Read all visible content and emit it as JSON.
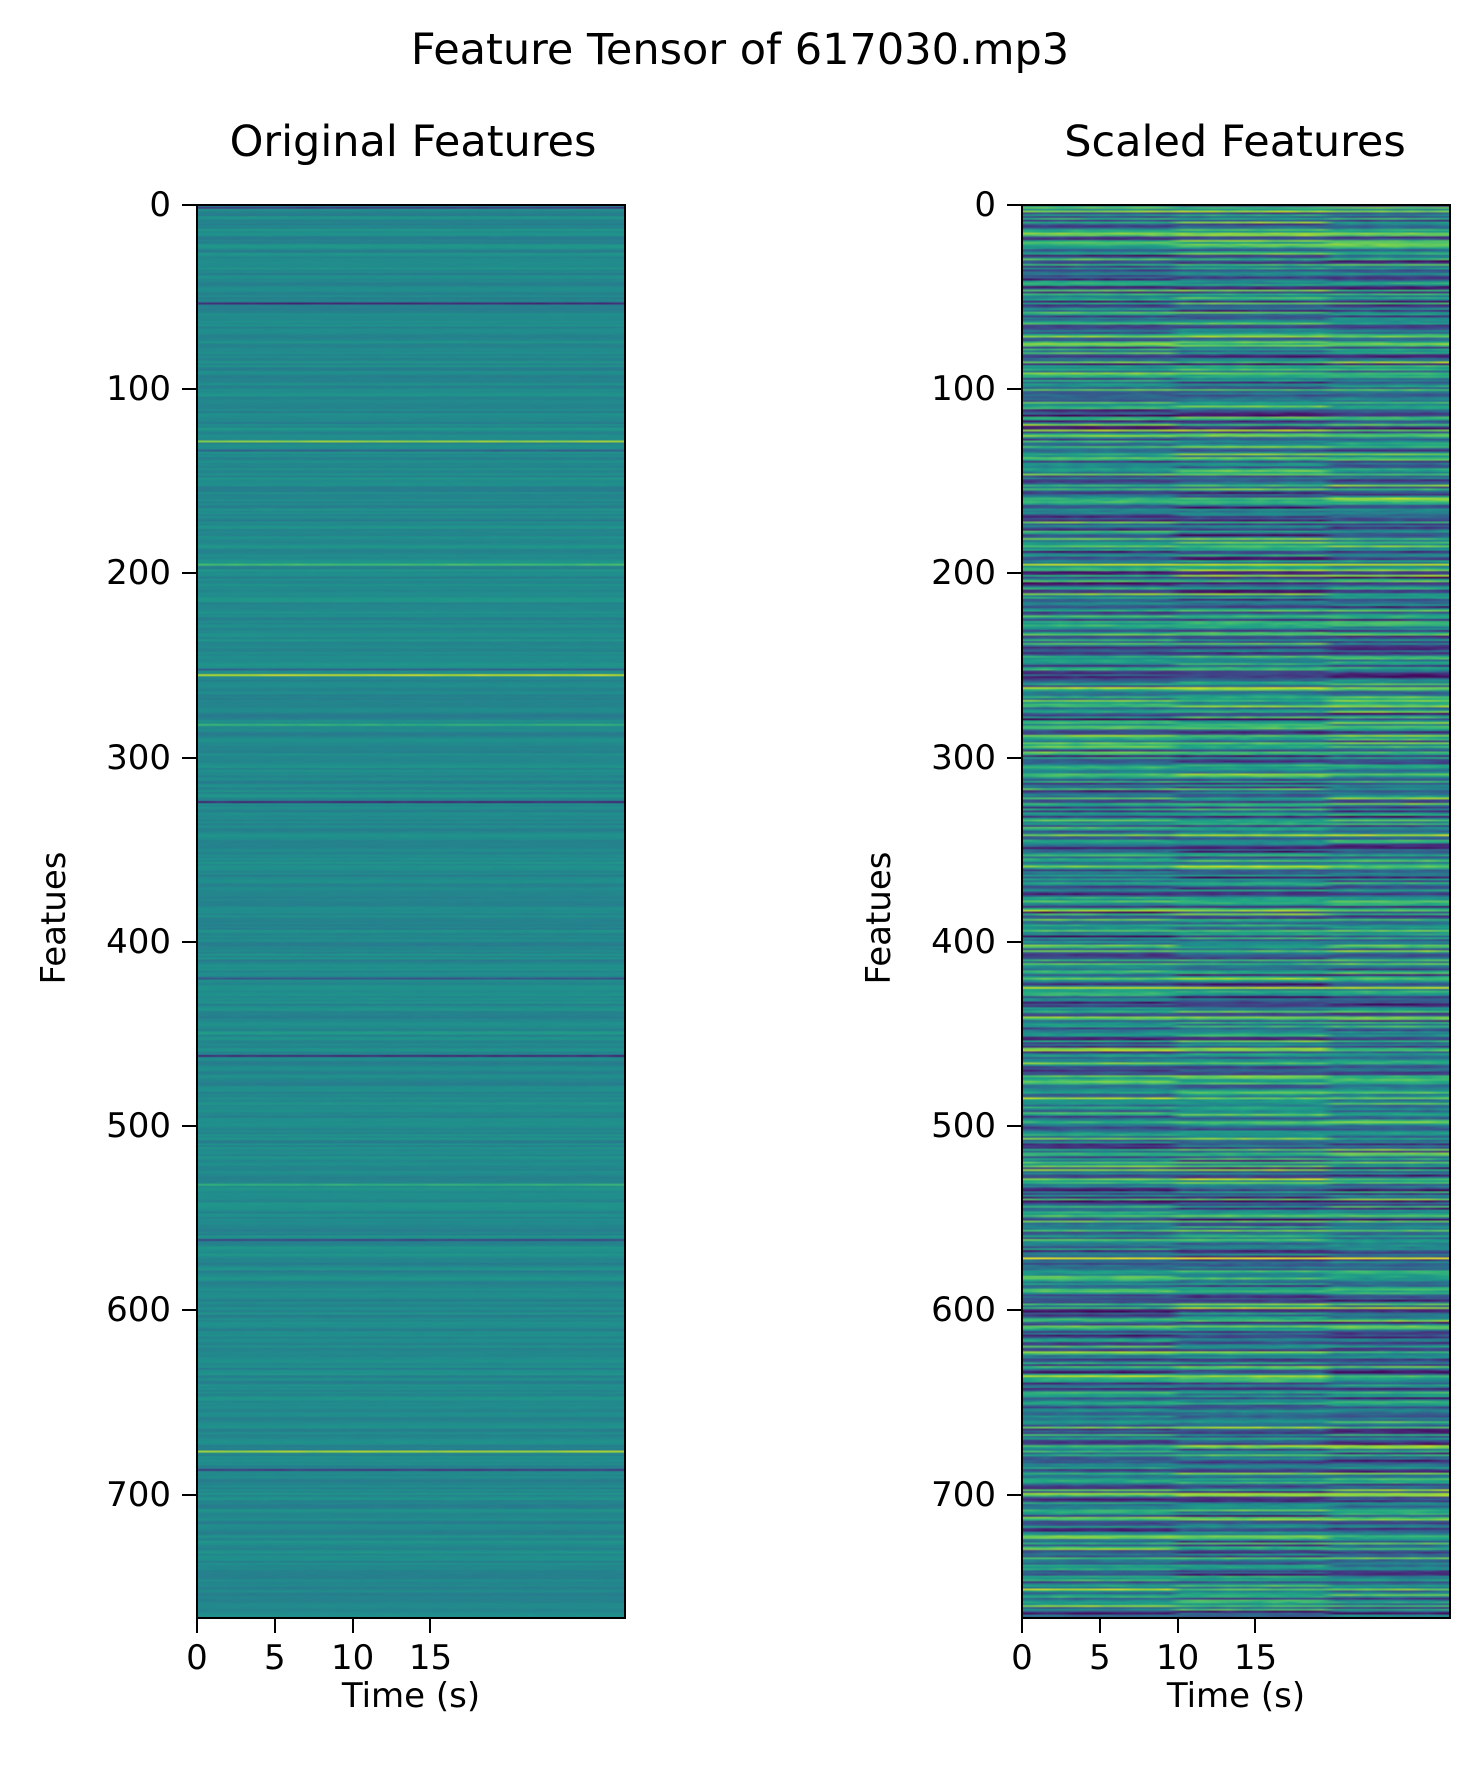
{
  "figure": {
    "suptitle": "Feature Tensor of 617030.mp3"
  },
  "chart_data": [
    {
      "type": "heatmap",
      "title": "Original Features",
      "xlabel": "Time (s)",
      "ylabel": "Featues",
      "colormap": "viridis",
      "xlim": [
        0,
        27.5
      ],
      "ylim": [
        767,
        0
      ],
      "xticks": [
        0,
        5,
        10,
        15
      ],
      "xtick_labels": [
        "0",
        "5",
        "10",
        "15"
      ],
      "yticks": [
        0,
        100,
        200,
        300,
        400,
        500,
        600,
        700
      ],
      "ytick_labels": [
        "0",
        "100",
        "200",
        "300",
        "400",
        "500",
        "600",
        "700"
      ],
      "base_level": 0.47,
      "row_variation": 0.05,
      "segment_boundaries": [],
      "highlight_rows": [
        {
          "row": 1,
          "level": 0.15
        },
        {
          "row": 53,
          "level": 0.1
        },
        {
          "row": 128,
          "level": 0.85
        },
        {
          "row": 133,
          "level": 0.3
        },
        {
          "row": 195,
          "level": 0.7
        },
        {
          "row": 255,
          "level": 0.92
        },
        {
          "row": 252,
          "level": 0.3
        },
        {
          "row": 282,
          "level": 0.65
        },
        {
          "row": 324,
          "level": 0.1
        },
        {
          "row": 420,
          "level": 0.25
        },
        {
          "row": 462,
          "level": 0.1
        },
        {
          "row": 532,
          "level": 0.65
        },
        {
          "row": 562,
          "level": 0.2
        },
        {
          "row": 677,
          "level": 0.88
        },
        {
          "row": 687,
          "level": 0.15
        }
      ]
    },
    {
      "type": "heatmap",
      "title": "Scaled Features",
      "xlabel": "Time (s)",
      "ylabel": "Featues",
      "colormap": "viridis",
      "xlim": [
        0,
        27.5
      ],
      "ylim": [
        767,
        0
      ],
      "xticks": [
        0,
        5,
        10,
        15
      ],
      "xtick_labels": [
        "0",
        "5",
        "10",
        "15"
      ],
      "yticks": [
        0,
        100,
        200,
        300,
        400,
        500,
        600,
        700
      ],
      "ytick_labels": [
        "0",
        "100",
        "200",
        "300",
        "400",
        "500",
        "600",
        "700"
      ],
      "base_level": 0.45,
      "row_variation": 0.32,
      "segment_boundaries": [
        10,
        20
      ],
      "highlight_rows": [
        {
          "row": 195,
          "level": 0.9
        },
        {
          "row": 240,
          "level": 0.12
        },
        {
          "row": 349,
          "level": 0.08
        },
        {
          "row": 425,
          "level": 0.9
        },
        {
          "row": 572,
          "level": 0.95
        },
        {
          "row": 600,
          "level": 0.12
        },
        {
          "row": 643,
          "level": 0.1
        },
        {
          "row": 700,
          "level": 0.85
        }
      ]
    }
  ]
}
